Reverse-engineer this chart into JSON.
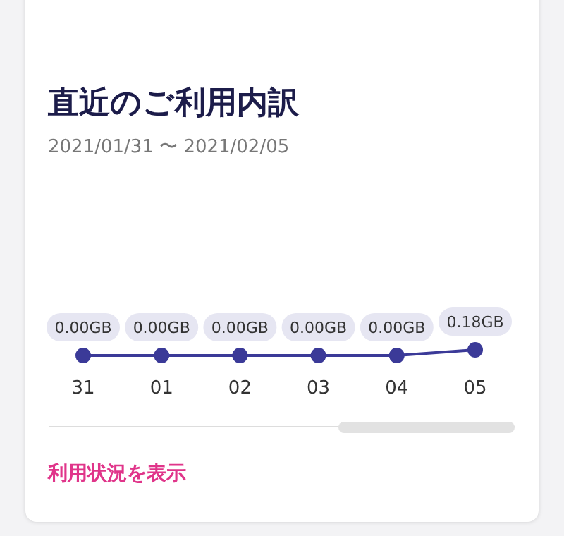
{
  "chart_data": {
    "type": "line",
    "title": "直近のご利用内訳",
    "subtitle": "2021/01/31 〜 2021/02/05",
    "categories": [
      "31",
      "01",
      "02",
      "03",
      "04",
      "05"
    ],
    "series": [
      {
        "color": "#3b3a98",
        "values": [
          0,
          0,
          0,
          0,
          0,
          0.18
        ],
        "value_labels": [
          "0.00GB",
          "0.00GB",
          "0.00GB",
          "0.00GB",
          "0.00GB",
          "0.18GB"
        ]
      }
    ],
    "marker": "circle",
    "line_style": "solid",
    "annotations": [
      "利用状況を表示"
    ]
  }
}
